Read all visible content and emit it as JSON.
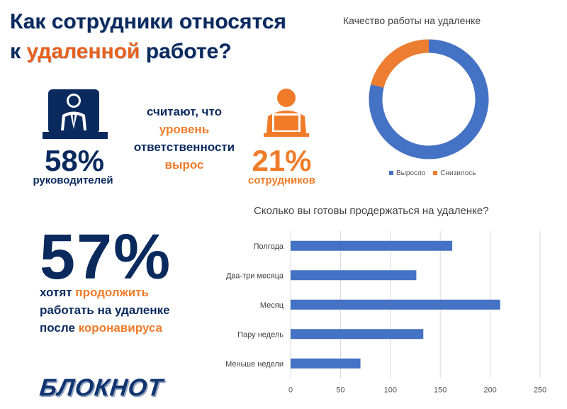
{
  "header": {
    "line1": "Как сотрудники относятся",
    "line2_prefix": "к ",
    "line2_accent": "удаленной",
    "line2_suffix": " работе?"
  },
  "managers": {
    "icon": "manager-icon",
    "percent": "58%",
    "label": "руководителей"
  },
  "employees": {
    "icon": "employee-laptop-icon",
    "percent": "21%",
    "label": "сотрудников"
  },
  "middle_text": {
    "line1": "считают, что",
    "line2": "уровень",
    "line3": "ответственности",
    "line4": "вырос"
  },
  "stay_remote": {
    "percent": "57%",
    "line1_a": "хотят ",
    "line1_b": "продолжить",
    "line2": "работать на удаленке",
    "line3_a": "после ",
    "line3_b": "коронавируса"
  },
  "logo": {
    "text": "БЛОКНОТ"
  },
  "colors": {
    "navy": "#0a2a5e",
    "orange": "#f07c2a",
    "blue_series": "#4472c4",
    "orange_series": "#ed7d31"
  },
  "chart_data": [
    {
      "type": "pie",
      "variant": "donut",
      "title": "Качество работы на удаленке",
      "categories": [
        "Выросло",
        "Снизилось"
      ],
      "values": [
        79,
        21
      ],
      "colors": [
        "#4472c4",
        "#ed7d31"
      ],
      "legend": "bottom"
    },
    {
      "type": "bar",
      "orientation": "horizontal",
      "title": "Сколько вы готовы продержаться на удаленке?",
      "categories": [
        "Полгода",
        "Два-три месяца",
        "Месяц",
        "Пару недель",
        "Меньше недели"
      ],
      "values": [
        162,
        126,
        210,
        133,
        70
      ],
      "xticks": [
        "0",
        "50",
        "100",
        "150",
        "200",
        "250"
      ],
      "xlim": [
        0,
        250
      ],
      "color": "#4472c4",
      "grid": true
    }
  ]
}
